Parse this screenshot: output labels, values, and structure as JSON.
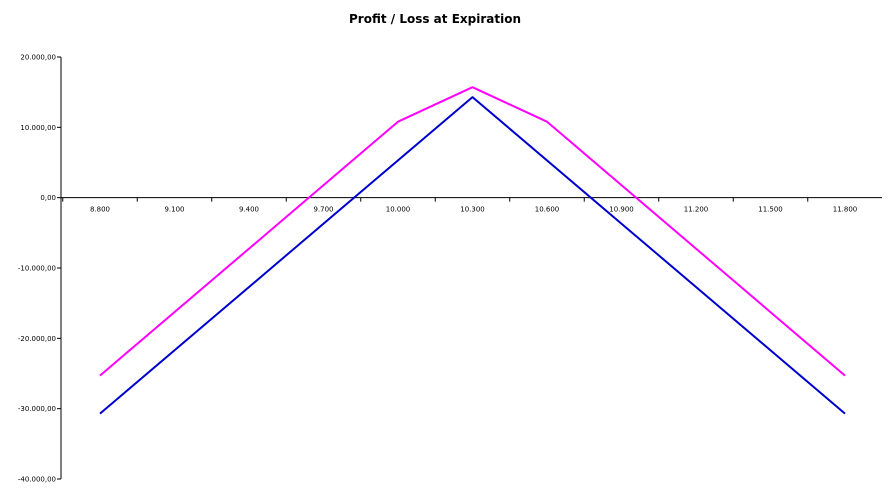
{
  "chart_data": {
    "type": "line",
    "title": "Profit / Loss at Expiration",
    "xlabel": "",
    "ylabel": "",
    "x_tick_labels": [
      "8.800",
      "9.100",
      "9.400",
      "9.700",
      "10.000",
      "10.300",
      "10.600",
      "10.900",
      "11.200",
      "11.500",
      "11.800"
    ],
    "y_tick_labels": [
      "20.000,00",
      "10.000,00",
      "0,00",
      "-10.000,00",
      "-20.000,00",
      "-30.000,00",
      "-40.000,00"
    ],
    "xlim": [
      8800,
      11800
    ],
    "ylim": [
      -40000,
      20000
    ],
    "grid": false,
    "legend": "none",
    "series": [
      {
        "color": "#ff00ff",
        "x": [
          8800,
          10000,
          10300,
          10600,
          11800
        ],
        "y": [
          -25300,
          10800,
          15700,
          10800,
          -25300
        ]
      },
      {
        "color": "#0000cc",
        "x": [
          8800,
          10300,
          11800
        ],
        "y": [
          -30700,
          14300,
          -30700
        ]
      }
    ]
  }
}
